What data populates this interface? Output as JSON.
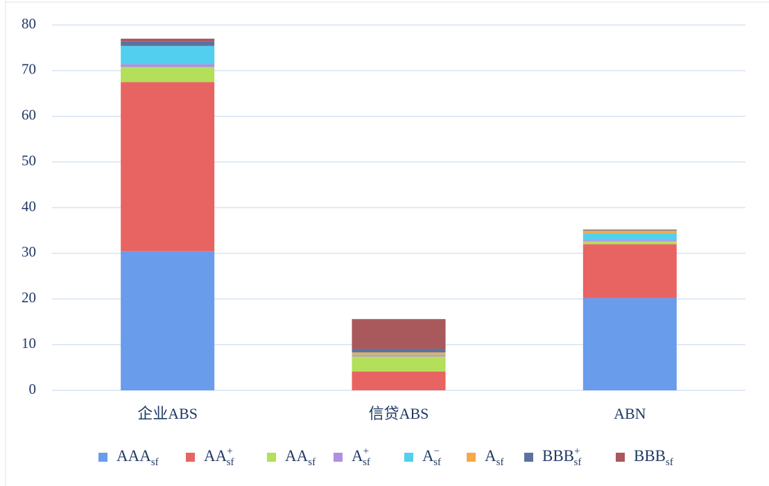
{
  "chart_data": {
    "type": "stacked_bar",
    "categories": [
      "企业ABS",
      "信贷ABS",
      "ABN"
    ],
    "ylim": [
      0,
      80
    ],
    "yticks": [
      0,
      10,
      20,
      30,
      40,
      50,
      60,
      70,
      80
    ],
    "grid": true,
    "series": [
      {
        "name": "AAA",
        "sub": "sf",
        "color": "#6a9cec",
        "values": [
          30.5,
          0,
          20.2
        ]
      },
      {
        "name": "AA",
        "sup": "+",
        "sub": "sf",
        "color": "#e86462",
        "values": [
          37.0,
          4.1,
          11.8
        ]
      },
      {
        "name": "AA",
        "sub": "sf",
        "color": "#b3df5a",
        "values": [
          3.3,
          3.3,
          0.6
        ]
      },
      {
        "name": "A",
        "sup": "+",
        "sub": "sf",
        "color": "#b08fe0",
        "values": [
          0.6,
          0.2,
          0.3
        ]
      },
      {
        "name": "A",
        "sup": "−",
        "sub": "sf",
        "color": "#52cfee",
        "values": [
          4.0,
          0.2,
          1.5
        ]
      },
      {
        "name": "A",
        "sub": "sf",
        "color": "#f5a84a",
        "values": [
          0,
          0.5,
          0.6
        ]
      },
      {
        "name": "BBB",
        "sup": "+",
        "sub": "sf",
        "color": "#5b72a0",
        "values": [
          1.0,
          0.8,
          0.2
        ]
      },
      {
        "name": "BBB",
        "sub": "sf",
        "color": "#a9585c",
        "values": [
          0.6,
          6.5,
          0
        ]
      }
    ]
  }
}
